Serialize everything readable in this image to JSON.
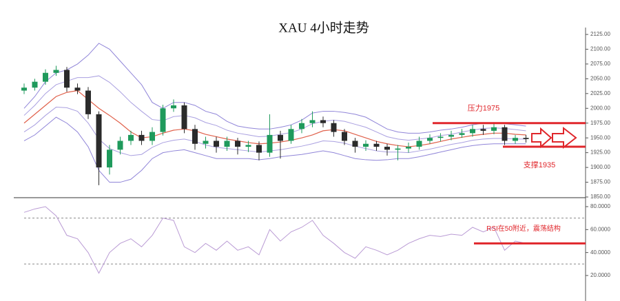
{
  "chart_data": [
    {
      "type": "candlestick",
      "title": "XAU 4小时走势",
      "open": [
        2030,
        2035,
        2045,
        2060,
        2065,
        2035,
        2030,
        1990,
        1900,
        1930,
        1945,
        1955,
        1945,
        1960,
        2000,
        2005,
        1965,
        1940,
        1945,
        1935,
        1945,
        1935,
        1938,
        1925,
        1955,
        1945,
        1965,
        1975,
        1980,
        1975,
        1960,
        1945,
        1935,
        1940,
        1935,
        1930,
        1932,
        1935,
        1945,
        1950,
        1952,
        1955,
        1958,
        1965,
        1962,
        1968,
        1945,
        1950
      ],
      "high": [
        2042,
        2050,
        2066,
        2072,
        2070,
        2042,
        2036,
        1995,
        1938,
        1952,
        1962,
        1962,
        1968,
        2006,
        2015,
        2010,
        1972,
        1952,
        1952,
        1952,
        1950,
        1945,
        1944,
        1990,
        1962,
        1972,
        1982,
        1995,
        1986,
        1980,
        1965,
        1950,
        1946,
        1945,
        1940,
        1938,
        1942,
        1952,
        1956,
        1958,
        1962,
        1965,
        1972,
        1972,
        1974,
        1972,
        1955,
        1955
      ],
      "low": [
        2024,
        2030,
        2040,
        2055,
        2028,
        2024,
        1982,
        1870,
        1888,
        1922,
        1938,
        1938,
        1938,
        1954,
        1994,
        1958,
        1930,
        1932,
        1925,
        1928,
        1922,
        1926,
        1912,
        1918,
        1915,
        1940,
        1958,
        1968,
        1968,
        1952,
        1938,
        1925,
        1928,
        1928,
        1920,
        1912,
        1925,
        1930,
        1940,
        1944,
        1946,
        1950,
        1952,
        1955,
        1956,
        1938,
        1940,
        1942
      ],
      "close": [
        2035,
        2045,
        2060,
        2065,
        2035,
        2030,
        1990,
        1900,
        1930,
        1945,
        1955,
        1945,
        1960,
        2000,
        2005,
        1965,
        1940,
        1945,
        1935,
        1945,
        1935,
        1938,
        1925,
        1955,
        1945,
        1965,
        1975,
        1980,
        1975,
        1960,
        1945,
        1935,
        1940,
        1935,
        1930,
        1932,
        1935,
        1945,
        1950,
        1952,
        1955,
        1958,
        1965,
        1962,
        1968,
        1945,
        1950,
        1948
      ],
      "up_color": "#1f9a5c",
      "down_color": "#2b2b2b",
      "series": [
        {
          "color": "#8f84d8",
          "values": [
            2000,
            2020,
            2045,
            2060,
            2065,
            2075,
            2090,
            2110,
            2100,
            2080,
            2060,
            2040,
            2010,
            2000,
            2010,
            2010,
            2005,
            1995,
            1990,
            1978,
            1970,
            1967,
            1965,
            1965,
            1968,
            1972,
            1980,
            1992,
            1995,
            1995,
            1993,
            1990,
            1985,
            1975,
            1965,
            1960,
            1958,
            1958,
            1960,
            1963,
            1965,
            1968,
            1972,
            1975,
            1976,
            1974,
            1972,
            1970
          ]
        },
        {
          "color": "#a99fe0",
          "values": [
            1988,
            2005,
            2025,
            2040,
            2046,
            2052,
            2052,
            2055,
            2044,
            2028,
            2010,
            1995,
            1981,
            1979,
            1986,
            1988,
            1984,
            1976,
            1971,
            1963,
            1958,
            1955,
            1952,
            1953,
            1956,
            1959,
            1965,
            1974,
            1978,
            1980,
            1978,
            1973,
            1968,
            1960,
            1952,
            1948,
            1946,
            1948,
            1950,
            1954,
            1956,
            1960,
            1963,
            1966,
            1967,
            1966,
            1964,
            1962
          ]
        },
        {
          "color": "#e0604a",
          "values": [
            1975,
            1990,
            2005,
            2020,
            2027,
            2030,
            2015,
            2000,
            1988,
            1975,
            1960,
            1950,
            1952,
            1958,
            1963,
            1965,
            1962,
            1956,
            1952,
            1948,
            1945,
            1942,
            1940,
            1941,
            1943,
            1946,
            1950,
            1955,
            1962,
            1964,
            1962,
            1956,
            1950,
            1944,
            1940,
            1937,
            1935,
            1937,
            1940,
            1944,
            1948,
            1951,
            1954,
            1956,
            1958,
            1958,
            1956,
            1955
          ]
        },
        {
          "color": "#a99fe0",
          "values": [
            1960,
            1972,
            1988,
            2002,
            2001,
            1995,
            1975,
            1948,
            1932,
            1925,
            1920,
            1922,
            1934,
            1942,
            1946,
            1948,
            1944,
            1938,
            1934,
            1932,
            1930,
            1928,
            1926,
            1928,
            1930,
            1933,
            1936,
            1940,
            1945,
            1944,
            1941,
            1936,
            1932,
            1928,
            1926,
            1926,
            1925,
            1928,
            1931,
            1935,
            1939,
            1942,
            1946,
            1948,
            1949,
            1949,
            1948,
            1948
          ]
        },
        {
          "color": "#8f84d8",
          "values": [
            1945,
            1955,
            1970,
            1985,
            1975,
            1960,
            1935,
            1895,
            1875,
            1875,
            1880,
            1895,
            1915,
            1925,
            1928,
            1930,
            1925,
            1920,
            1915,
            1915,
            1915,
            1915,
            1913,
            1915,
            1918,
            1920,
            1922,
            1925,
            1928,
            1925,
            1920,
            1915,
            1913,
            1912,
            1913,
            1915,
            1915,
            1918,
            1922,
            1926,
            1930,
            1934,
            1937,
            1939,
            1940,
            1940,
            1940,
            1940
          ]
        }
      ],
      "ylim": [
        1850,
        2125
      ],
      "yticks": [
        {
          "value": 1850,
          "label": "1850.00"
        },
        {
          "value": 1875,
          "label": "1875.00"
        },
        {
          "value": 1900,
          "label": "1900.00"
        },
        {
          "value": 1925,
          "label": "1925.00"
        },
        {
          "value": 1950,
          "label": "1950.00"
        },
        {
          "value": 1975,
          "label": "1975.00"
        },
        {
          "value": 2000,
          "label": "2000.00"
        },
        {
          "value": 2025,
          "label": "2025.00"
        },
        {
          "value": 2050,
          "label": "2050.00"
        },
        {
          "value": 2075,
          "label": "2075.00"
        },
        {
          "value": 2100,
          "label": "2100.00"
        },
        {
          "value": 2125,
          "label": "2125.00"
        }
      ],
      "annotations": [
        {
          "text": "压力1975",
          "value": 1975,
          "color": "#e0262b"
        },
        {
          "text": "支撑1935",
          "value": 1935,
          "color": "#e0262b"
        }
      ]
    },
    {
      "type": "line",
      "color": "#b99ad4",
      "values": [
        75,
        78,
        80,
        72,
        55,
        52,
        40,
        22,
        40,
        48,
        52,
        45,
        55,
        70,
        68,
        45,
        40,
        48,
        42,
        50,
        42,
        45,
        38,
        60,
        50,
        58,
        62,
        68,
        55,
        48,
        40,
        35,
        45,
        42,
        38,
        42,
        48,
        52,
        55,
        54,
        56,
        55,
        62,
        58,
        62,
        42,
        50,
        48
      ],
      "ylim": [
        0,
        86
      ],
      "yticks": [
        {
          "value": 20,
          "label": "20.0000"
        },
        {
          "value": 40,
          "label": "40.0000"
        },
        {
          "value": 60,
          "label": "60.0000"
        },
        {
          "value": 80,
          "label": "80.0000"
        }
      ],
      "reference_lines": [
        30,
        70
      ],
      "annotation": {
        "text": "RSI在50附近，震荡结构",
        "value": 48,
        "color": "#e0262b"
      }
    }
  ]
}
